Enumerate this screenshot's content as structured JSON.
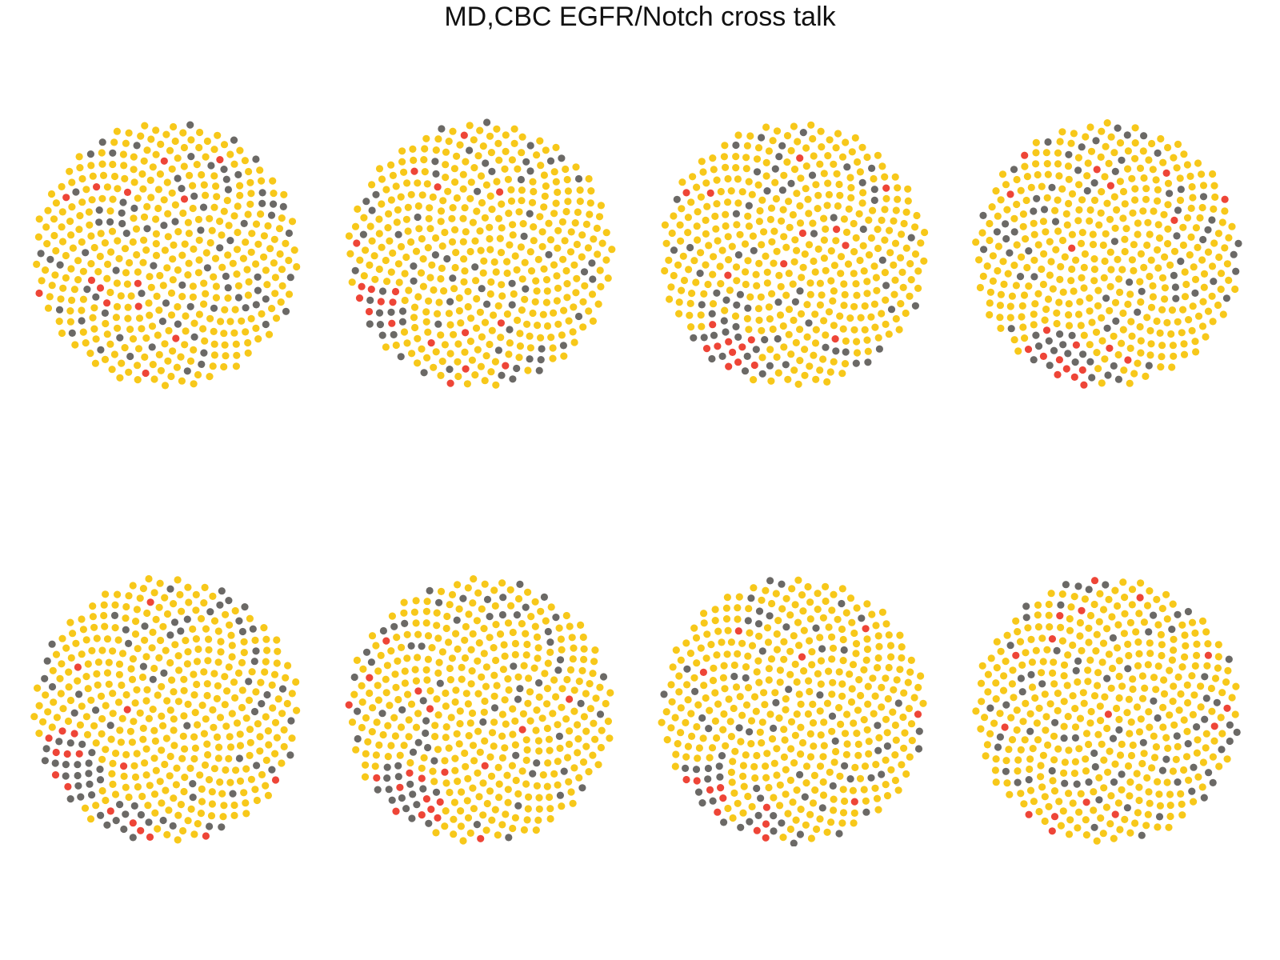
{
  "title": "MD,CBC EGFR/Notch cross talk",
  "colors": {
    "background": "#ffffff",
    "yellow": "#F7C81A",
    "gray": "#6B6966",
    "red": "#EE4537"
  },
  "chart_data": {
    "type": "scatter",
    "title": "MD,CBC EGFR/Notch cross talk",
    "layout": "2 rows x 4 columns of circular cell-grid panels",
    "axes_visible": false,
    "grid": false,
    "legend": "none",
    "categories": [
      "yellow",
      "gray",
      "red"
    ],
    "panels": [
      {
        "row": 1,
        "col": 1,
        "cells": 450,
        "counts": {
          "yellow": 358,
          "gray": 78,
          "red": 14
        },
        "clusters": []
      },
      {
        "row": 1,
        "col": 2,
        "cells": 450,
        "counts": {
          "yellow": 366,
          "gray": 65,
          "red": 19
        },
        "clusters": [
          {
            "angle": 150,
            "red": 8,
            "gray": 10
          }
        ]
      },
      {
        "row": 1,
        "col": 3,
        "cells": 450,
        "counts": {
          "yellow": 364,
          "gray": 66,
          "red": 20
        },
        "clusters": [
          {
            "angle": 125,
            "red": 10,
            "gray": 12
          }
        ]
      },
      {
        "row": 1,
        "col": 4,
        "cells": 450,
        "counts": {
          "yellow": 357,
          "gray": 73,
          "red": 20
        },
        "clusters": [
          {
            "angle": 115,
            "red": 10,
            "gray": 14
          }
        ]
      },
      {
        "row": 2,
        "col": 1,
        "cells": 450,
        "counts": {
          "yellow": 354,
          "gray": 78,
          "red": 18
        },
        "clusters": [
          {
            "angle": 150,
            "red": 8,
            "gray": 20
          },
          {
            "angle": 110,
            "red": 4,
            "gray": 10
          }
        ]
      },
      {
        "row": 2,
        "col": 2,
        "cells": 450,
        "counts": {
          "yellow": 358,
          "gray": 72,
          "red": 20
        },
        "clusters": [
          {
            "angle": 130,
            "red": 10,
            "gray": 16
          }
        ]
      },
      {
        "row": 2,
        "col": 3,
        "cells": 450,
        "counts": {
          "yellow": 368,
          "gray": 66,
          "red": 16
        },
        "clusters": [
          {
            "angle": 140,
            "red": 6,
            "gray": 8
          },
          {
            "angle": 105,
            "red": 4,
            "gray": 6
          }
        ]
      },
      {
        "row": 2,
        "col": 4,
        "cells": 450,
        "counts": {
          "yellow": 362,
          "gray": 72,
          "red": 16
        },
        "clusters": []
      }
    ]
  }
}
